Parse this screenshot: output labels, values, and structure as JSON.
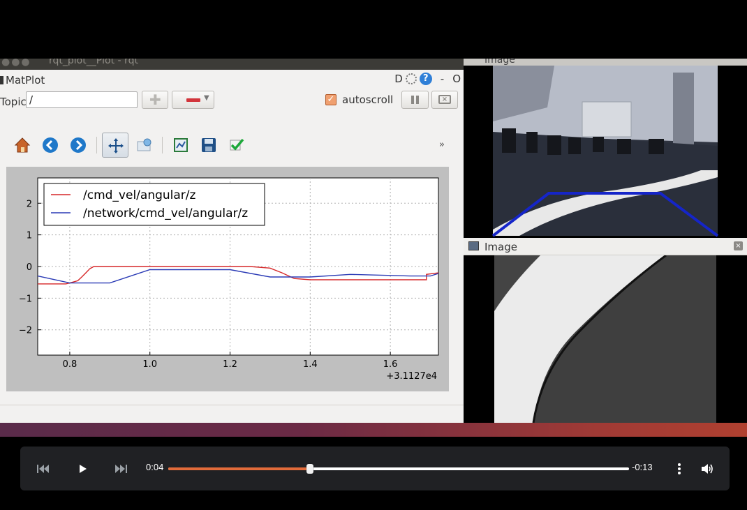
{
  "rqt": {
    "window_title": "rqt_plot__Plot - rqt",
    "panel_title": "MatPlot",
    "panel_controls": {
      "d_label": "D",
      "help_label": "?",
      "minimize": "-",
      "close": "O"
    },
    "topic_label": "Topic",
    "topic_value": "/",
    "autoscroll_label": "autoscroll",
    "autoscroll_checked": true,
    "toolbar_more": "»",
    "toolbar_icons": [
      "home-icon",
      "back-arrow-icon",
      "forward-arrow-icon",
      "pan-icon",
      "zoom-config-icon",
      "fit-view-icon",
      "save-icon",
      "apply-check-icon"
    ]
  },
  "chart_data": {
    "type": "line",
    "xlim": [
      0.72,
      1.72
    ],
    "ylim": [
      -2.8,
      2.8
    ],
    "x_ticks": [
      "0.8",
      "1.0",
      "1.2",
      "1.4",
      "1.6"
    ],
    "x_tick_values": [
      0.8,
      1.0,
      1.2,
      1.4,
      1.6
    ],
    "y_ticks": [
      "2",
      "1",
      "0",
      "−1",
      "−2"
    ],
    "y_tick_values": [
      2,
      1,
      0,
      -1,
      -2
    ],
    "x_offset_label": "+3.1127e4",
    "grid": true,
    "legend_position": "upper-left",
    "series": [
      {
        "name": "/cmd_vel/angular/z",
        "color": "#d62728",
        "points": [
          [
            0.72,
            -0.55
          ],
          [
            0.79,
            -0.55
          ],
          [
            0.8,
            -0.52
          ],
          [
            0.82,
            -0.45
          ],
          [
            0.83,
            -0.33
          ],
          [
            0.84,
            -0.2
          ],
          [
            0.85,
            -0.07
          ],
          [
            0.86,
            0.0
          ],
          [
            1.0,
            0.0
          ],
          [
            1.25,
            0.0
          ],
          [
            1.3,
            -0.05
          ],
          [
            1.33,
            -0.2
          ],
          [
            1.36,
            -0.38
          ],
          [
            1.4,
            -0.42
          ],
          [
            1.5,
            -0.42
          ],
          [
            1.69,
            -0.42
          ],
          [
            1.69,
            -0.25
          ],
          [
            1.72,
            -0.2
          ]
        ]
      },
      {
        "name": "/network/cmd_vel/angular/z",
        "color": "#2a3ab5",
        "points": [
          [
            0.72,
            -0.3
          ],
          [
            0.8,
            -0.52
          ],
          [
            0.9,
            -0.52
          ],
          [
            1.0,
            -0.1
          ],
          [
            1.2,
            -0.1
          ],
          [
            1.3,
            -0.33
          ],
          [
            1.4,
            -0.33
          ],
          [
            1.5,
            -0.25
          ],
          [
            1.65,
            -0.3
          ],
          [
            1.7,
            -0.3
          ],
          [
            1.72,
            -0.22
          ]
        ]
      }
    ]
  },
  "image_windows": {
    "top_title": "Image",
    "bottom_title": "Image",
    "close_glyph": "×"
  },
  "player": {
    "current_time": "0:04",
    "remaining_time": "-0:13",
    "progress_fraction": 0.307,
    "accent_color": "#e26b3a",
    "icons": [
      "skip-previous-icon",
      "play-icon",
      "skip-next-icon",
      "more-options-icon",
      "volume-icon"
    ]
  }
}
